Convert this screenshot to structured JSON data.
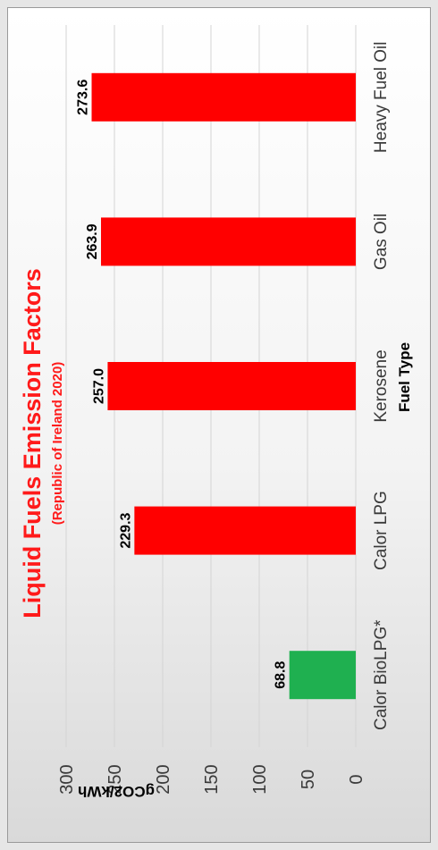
{
  "chart_data": {
    "type": "bar",
    "orientation": "vertical-rotated",
    "title": "Liquid Fuels Emission Factors",
    "subtitle": "(Republic of Ireland 2020)",
    "xlabel": "Fuel Type",
    "ylabel": "gCO2/kWh",
    "categories": [
      "Calor BioLPG*",
      "Calor LPG",
      "Kerosene",
      "Gas Oil",
      "Heavy Fuel Oil"
    ],
    "values": [
      68.8,
      229.3,
      257.0,
      263.9,
      273.6
    ],
    "value_labels": [
      "68.8",
      "229.3",
      "257.0",
      "263.9",
      "273.6"
    ],
    "bar_colors": [
      "#1fb050",
      "#ff0000",
      "#ff0000",
      "#ff0000",
      "#ff0000"
    ],
    "ylim": [
      0,
      300
    ],
    "yticks": [
      0,
      50,
      100,
      150,
      200,
      250,
      300
    ],
    "grid": true
  }
}
